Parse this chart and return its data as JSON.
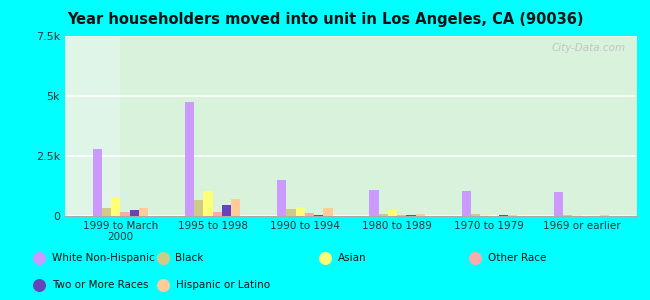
{
  "title": "Year householders moved into unit in Los Angeles, CA (90036)",
  "categories": [
    "1999 to March\n2000",
    "1995 to 1998",
    "1990 to 1994",
    "1980 to 1989",
    "1970 to 1979",
    "1969 or earlier"
  ],
  "series_order": [
    "White Non-Hispanic",
    "Black",
    "Asian",
    "Other Race",
    "Two or More Races",
    "Hispanic or Latino"
  ],
  "series": {
    "White Non-Hispanic": [
      2800,
      4750,
      1500,
      1100,
      1050,
      1000
    ],
    "Black": [
      350,
      650,
      280,
      80,
      70,
      40
    ],
    "Asian": [
      800,
      1050,
      380,
      270,
      45,
      25
    ],
    "Other Race": [
      150,
      150,
      120,
      40,
      15,
      15
    ],
    "Two or More Races": [
      270,
      470,
      60,
      40,
      25,
      15
    ],
    "Hispanic or Latino": [
      350,
      700,
      320,
      70,
      50,
      25
    ]
  },
  "colors": {
    "White Non-Hispanic": "#cc99ff",
    "Black": "#cccc88",
    "Asian": "#ffff77",
    "Other Race": "#ffaaaa",
    "Two or More Races": "#6644bb",
    "Hispanic or Latino": "#ffcc99"
  },
  "legend_colors": {
    "White Non-Hispanic": "#cc99ff",
    "Black": "#cccc88",
    "Asian": "#ffff77",
    "Other Race": "#ffaaaa",
    "Two or More Races": "#6644bb",
    "Hispanic or Latino": "#ffcc99"
  },
  "ylim": [
    0,
    7500
  ],
  "yticks": [
    0,
    2500,
    5000,
    7500
  ],
  "ytick_labels": [
    "0",
    "2.5k",
    "5k",
    "7.5k"
  ],
  "background_color": "#00ffff",
  "watermark": "City-Data.com",
  "legend_row1": [
    "White Non-Hispanic",
    "Black",
    "Asian",
    "Other Race"
  ],
  "legend_row2": [
    "Two or More Races",
    "Hispanic or Latino"
  ]
}
